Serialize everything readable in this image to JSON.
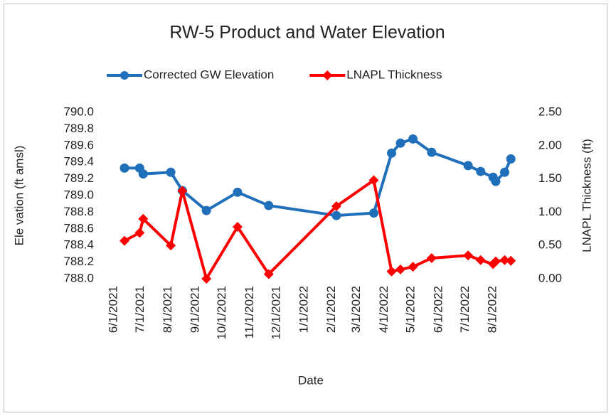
{
  "chart_data": {
    "type": "line",
    "title": "RW-5 Product and Water Elevation",
    "xlabel": "Date",
    "ylabel": "Ele vation (ft amsl)",
    "y2label": "LNAPL Thickness (ft)",
    "x": [
      "2021-06-13",
      "2021-06-30",
      "2021-07-04",
      "2021-08-04",
      "2021-08-17",
      "2021-09-13",
      "2021-10-18",
      "2021-11-22",
      "2022-02-06",
      "2022-03-20",
      "2022-04-09",
      "2022-04-19",
      "2022-05-03",
      "2022-05-24",
      "2022-07-04",
      "2022-07-18",
      "2022-08-01",
      "2022-08-04",
      "2022-08-14",
      "2022-08-21"
    ],
    "xlim": [
      "2021-06-01",
      "2022-09-01"
    ],
    "xticks": [
      {
        "value": "2021-06-01",
        "label": "6/1/2021"
      },
      {
        "value": "2021-07-01",
        "label": "7/1/2021"
      },
      {
        "value": "2021-08-01",
        "label": "8/1/2021"
      },
      {
        "value": "2021-09-01",
        "label": "9/1/2021"
      },
      {
        "value": "2021-10-01",
        "label": "10/1/2021"
      },
      {
        "value": "2021-11-01",
        "label": "11/1/2021"
      },
      {
        "value": "2021-12-01",
        "label": "12/1/2021"
      },
      {
        "value": "2022-01-01",
        "label": "1/1/2022"
      },
      {
        "value": "2022-02-01",
        "label": "2/1/2022"
      },
      {
        "value": "2022-03-01",
        "label": "3/1/2022"
      },
      {
        "value": "2022-04-01",
        "label": "4/1/2022"
      },
      {
        "value": "2022-05-01",
        "label": "5/1/2022"
      },
      {
        "value": "2022-06-01",
        "label": "6/1/2022"
      },
      {
        "value": "2022-07-01",
        "label": "7/1/2022"
      },
      {
        "value": "2022-08-01",
        "label": "8/1/2022"
      }
    ],
    "ylim": [
      788,
      790
    ],
    "yticks": [
      {
        "value": 788,
        "label": "788.0"
      },
      788.2,
      788.4,
      788.6,
      788.8,
      {
        "value": 789,
        "label": "789.0"
      },
      789.2,
      789.4,
      789.6,
      789.8,
      {
        "value": 790,
        "label": "790.0"
      }
    ],
    "y2lim": [
      0,
      2.5
    ],
    "y2ticks": [
      {
        "value": 0,
        "label": "0.00"
      },
      {
        "value": 0.5,
        "label": "0.50"
      },
      {
        "value": 1,
        "label": "1.00"
      },
      {
        "value": 1.5,
        "label": "1.50"
      },
      {
        "value": 2,
        "label": "2.00"
      },
      {
        "value": 2.5,
        "label": "2.50"
      }
    ],
    "legend": "top",
    "series": [
      {
        "name": "Corrected GW Elevation",
        "color": "#1f6fba",
        "marker": "circle",
        "values": [
          789.33,
          789.33,
          789.26,
          789.28,
          789.06,
          788.82,
          789.04,
          788.88,
          788.76,
          788.79,
          789.51,
          789.63,
          789.68,
          789.52,
          789.36,
          789.29,
          789.22,
          789.17,
          789.28,
          789.44
        ]
      },
      {
        "name": "LNAPL Thickness",
        "color": "#ff0000",
        "marker": "diamond",
        "axis": "y2",
        "values": [
          0.57,
          0.69,
          0.9,
          0.5,
          1.32,
          0.0,
          0.78,
          0.07,
          1.09,
          1.48,
          0.11,
          0.14,
          0.18,
          0.31,
          0.35,
          0.28,
          0.22,
          0.26,
          0.28,
          0.27
        ]
      }
    ]
  }
}
